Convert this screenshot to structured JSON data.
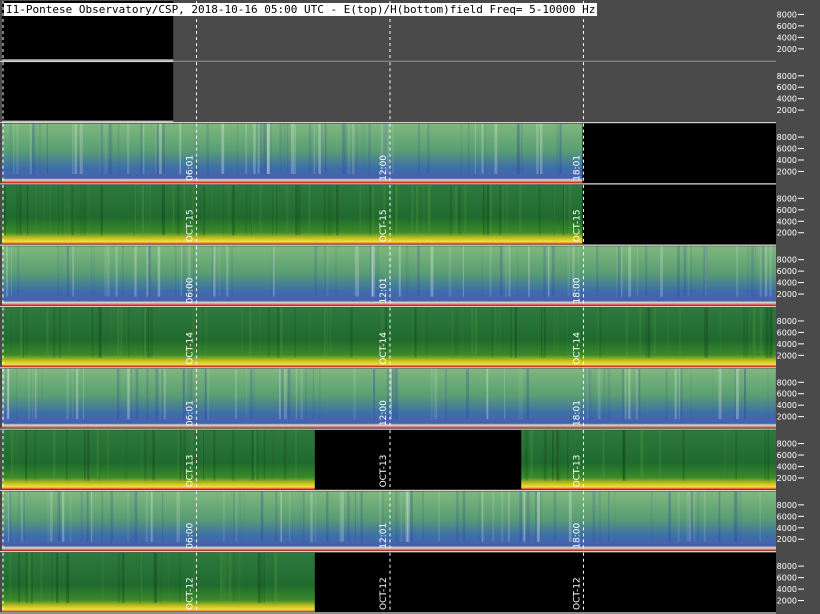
{
  "title": "I1-Pontese Observatory/CSP, 2018-10-16 05:00 UTC - E(top)/H(bottom)field Freq= 5-10000 Hz",
  "chart_data": {
    "type": "heatmap",
    "y_ticks": [
      2000,
      4000,
      6000,
      8000
    ],
    "ylim": [
      5,
      10000
    ],
    "hours": [
      0,
      24
    ],
    "marker_hours": [
      0,
      6,
      12,
      18
    ],
    "rows": [
      {
        "field": "E",
        "date": "OCT-16",
        "show_labels": false,
        "data_until": 5,
        "fill": "#000000",
        "style": "none",
        "hour_labels": []
      },
      {
        "field": "H",
        "date": "OCT-16",
        "show_labels": false,
        "data_until": 5,
        "fill": "#000000",
        "style": "none",
        "hour_labels": []
      },
      {
        "field": "E",
        "date": "OCT-15",
        "show_labels": true,
        "data_until": 18,
        "fill": "#000000",
        "style": "e",
        "hour_labels": [
          "06:01",
          "12:00",
          "18:01"
        ]
      },
      {
        "field": "H",
        "date": "OCT-15",
        "show_labels": true,
        "data_until": 18,
        "fill": "#000000",
        "style": "h",
        "hour_labels": [
          "06:01",
          "12:00",
          "18:01"
        ]
      },
      {
        "field": "E",
        "date": "OCT-14",
        "show_labels": true,
        "data_until": 24,
        "fill": "#000000",
        "style": "e",
        "hour_labels": [
          "06:00",
          "12:01",
          "18:00"
        ]
      },
      {
        "field": "H",
        "date": "OCT-14",
        "show_labels": true,
        "data_until": 24,
        "fill": "#000000",
        "style": "h",
        "hour_labels": [
          "06:00",
          "12:01",
          "18:00"
        ]
      },
      {
        "field": "E",
        "date": "OCT-13",
        "show_labels": true,
        "data_until": 24,
        "fill": "#000000",
        "style": "e",
        "hour_labels": [
          "06:01",
          "12:00",
          "18:01"
        ]
      },
      {
        "field": "H",
        "date": "OCT-13",
        "show_labels": true,
        "data_until": 24,
        "fill": "#000000",
        "style": "h",
        "gaps": [
          [
            9.7,
            16.1
          ]
        ],
        "hour_labels": [
          "06:01",
          "12:00",
          "18:01"
        ]
      },
      {
        "field": "E",
        "date": "OCT-12",
        "show_labels": true,
        "data_until": 24,
        "fill": "#000000",
        "style": "e",
        "hour_labels": [
          "06:00",
          "12:01",
          "18:00"
        ]
      },
      {
        "field": "H",
        "date": "OCT-12",
        "show_labels": true,
        "data_until": 24,
        "fill": "#000000",
        "style": "h",
        "gaps": [
          [
            9.7,
            24
          ]
        ],
        "hour_labels": [
          "06:00",
          "12:01",
          "18:00"
        ]
      }
    ]
  }
}
